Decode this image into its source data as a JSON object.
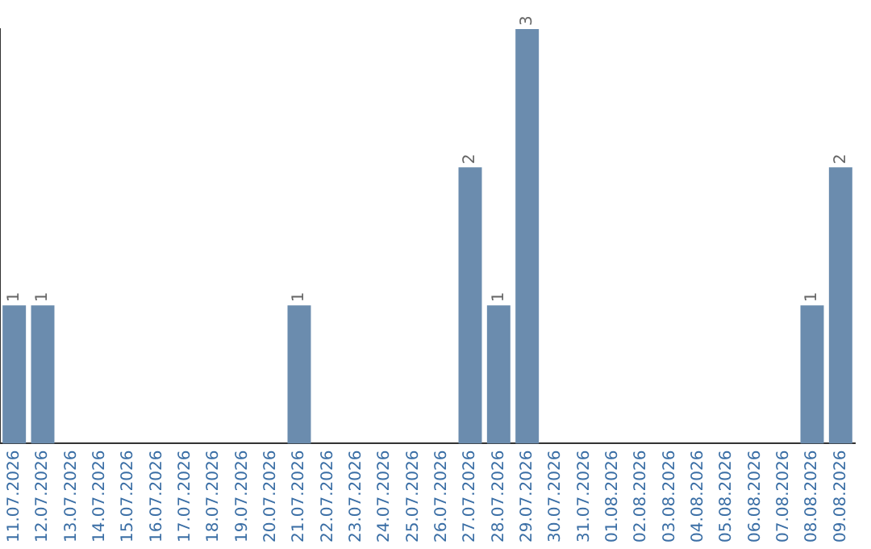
{
  "chart_data": {
    "type": "bar",
    "categories": [
      "11.07.2026",
      "12.07.2026",
      "13.07.2026",
      "14.07.2026",
      "15.07.2026",
      "16.07.2026",
      "17.07.2026",
      "18.07.2026",
      "19.07.2026",
      "20.07.2026",
      "21.07.2026",
      "22.07.2026",
      "23.07.2026",
      "24.07.2026",
      "25.07.2026",
      "26.07.2026",
      "27.07.2026",
      "28.07.2026",
      "29.07.2026",
      "30.07.2026",
      "31.07.2026",
      "01.08.2026",
      "02.08.2026",
      "03.08.2026",
      "04.08.2026",
      "05.08.2026",
      "06.08.2026",
      "07.08.2026",
      "08.08.2026",
      "09.08.2026"
    ],
    "values": [
      1,
      1,
      0,
      0,
      0,
      0,
      0,
      0,
      0,
      0,
      1,
      0,
      0,
      0,
      0,
      0,
      2,
      1,
      3,
      0,
      0,
      0,
      0,
      0,
      0,
      0,
      0,
      0,
      1,
      2
    ],
    "value_labels": [
      "1",
      "1",
      null,
      null,
      null,
      null,
      null,
      null,
      null,
      null,
      "1",
      null,
      null,
      null,
      null,
      null,
      "2",
      "1",
      "3",
      null,
      null,
      null,
      null,
      null,
      null,
      null,
      null,
      null,
      "1",
      "2"
    ],
    "color": "#6b8cae",
    "grid": false,
    "legend": false,
    "tick_labels": "x"
  }
}
